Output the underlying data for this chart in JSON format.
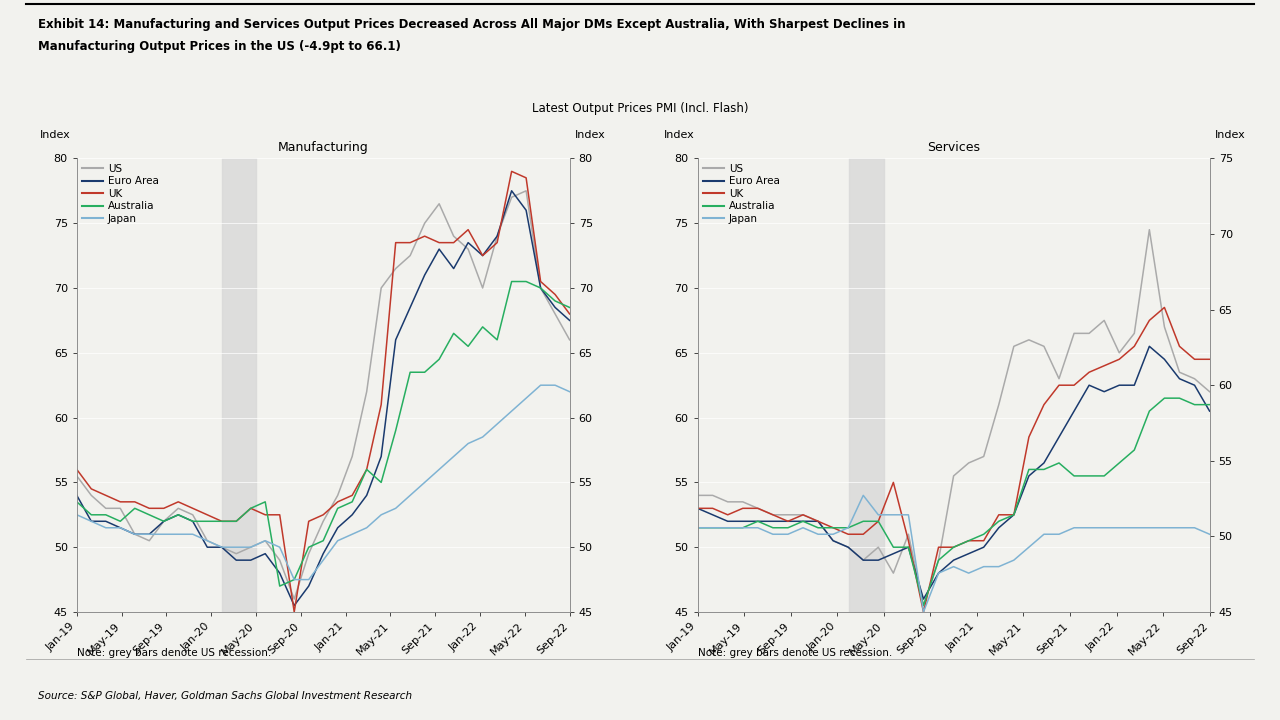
{
  "title_line1": "Exhibit 14: Manufacturing and Services Output Prices Decreased Across All Major DMs Except Australia, With Sharpest Declines in",
  "title_line2": "Manufacturing Output Prices in the US (-4.9pt to 66.1)",
  "super_title": "Latest Output Prices PMI (Incl. Flash)",
  "source": "Source: S&P Global, Haver, Goldman Sachs Global Investment Research",
  "note": "Note: grey bars denote US recession.",
  "bg_color": "#f5f5f0",
  "colors": {
    "US": "#aaaaaa",
    "Euro Area": "#1a3a6e",
    "UK": "#c0392b",
    "Australia": "#27ae60",
    "Japan": "#7fb3d3"
  },
  "x_labels": [
    "Jan-19",
    "May-19",
    "Sep-19",
    "Jan-20",
    "May-20",
    "Sep-20",
    "Jan-21",
    "May-21",
    "Sep-21",
    "Jan-22",
    "May-22",
    "Sep-22"
  ],
  "manufacturing": {
    "US": [
      55.5,
      54.0,
      53.0,
      53.0,
      51.0,
      50.5,
      52.0,
      53.0,
      52.5,
      50.5,
      50.0,
      49.5,
      50.0,
      50.5,
      49.0,
      46.0,
      49.5,
      52.0,
      54.0,
      57.0,
      62.0,
      70.0,
      71.5,
      72.5,
      75.0,
      76.5,
      74.0,
      73.0,
      70.0,
      74.0,
      77.0,
      77.5,
      70.0,
      68.0,
      66.0
    ],
    "Euro Area": [
      54.0,
      52.0,
      52.0,
      51.5,
      51.0,
      51.0,
      52.0,
      52.5,
      52.0,
      50.0,
      50.0,
      49.0,
      49.0,
      49.5,
      48.0,
      45.5,
      47.0,
      49.5,
      51.5,
      52.5,
      54.0,
      57.0,
      66.0,
      68.5,
      71.0,
      73.0,
      71.5,
      73.5,
      72.5,
      74.0,
      77.5,
      76.0,
      70.0,
      68.5,
      67.5
    ],
    "UK": [
      56.0,
      54.5,
      54.0,
      53.5,
      53.5,
      53.0,
      53.0,
      53.5,
      53.0,
      52.5,
      52.0,
      52.0,
      53.0,
      52.5,
      52.5,
      45.0,
      52.0,
      52.5,
      53.5,
      54.0,
      56.0,
      61.0,
      73.5,
      73.5,
      74.0,
      73.5,
      73.5,
      74.5,
      72.5,
      73.5,
      79.0,
      78.5,
      70.5,
      69.5,
      68.0
    ],
    "Australia": [
      53.5,
      52.5,
      52.5,
      52.0,
      53.0,
      52.5,
      52.0,
      52.5,
      52.0,
      52.0,
      52.0,
      52.0,
      53.0,
      53.5,
      47.0,
      47.5,
      50.0,
      50.5,
      53.0,
      53.5,
      56.0,
      55.0,
      59.0,
      63.5,
      63.5,
      64.5,
      66.5,
      65.5,
      67.0,
      66.0,
      70.5,
      70.5,
      70.0,
      69.0,
      68.5
    ],
    "Japan": [
      52.5,
      52.0,
      51.5,
      51.5,
      51.0,
      51.0,
      51.0,
      51.0,
      51.0,
      50.5,
      50.0,
      50.0,
      50.0,
      50.5,
      50.0,
      47.5,
      47.5,
      49.0,
      50.5,
      51.0,
      51.5,
      52.5,
      53.0,
      54.0,
      55.0,
      56.0,
      57.0,
      58.0,
      58.5,
      59.5,
      60.5,
      61.5,
      62.5,
      62.5,
      62.0
    ]
  },
  "services": {
    "US": [
      54.0,
      54.0,
      53.5,
      53.5,
      53.0,
      52.5,
      52.5,
      52.5,
      52.0,
      50.5,
      50.0,
      49.0,
      50.0,
      48.0,
      51.0,
      45.5,
      49.0,
      55.5,
      56.5,
      57.0,
      61.0,
      65.5,
      66.0,
      65.5,
      63.0,
      66.5,
      66.5,
      67.5,
      65.0,
      66.5,
      74.5,
      67.0,
      63.5,
      63.0,
      62.0
    ],
    "Euro Area": [
      53.0,
      52.5,
      52.0,
      52.0,
      52.0,
      52.0,
      52.0,
      52.0,
      52.0,
      50.5,
      50.0,
      49.0,
      49.0,
      49.5,
      50.0,
      46.0,
      48.0,
      49.0,
      49.5,
      50.0,
      51.5,
      52.5,
      55.5,
      56.5,
      58.5,
      60.5,
      62.5,
      62.0,
      62.5,
      62.5,
      65.5,
      64.5,
      63.0,
      62.5,
      60.5
    ],
    "UK": [
      53.0,
      53.0,
      52.5,
      53.0,
      53.0,
      52.5,
      52.0,
      52.5,
      52.0,
      51.5,
      51.0,
      51.0,
      52.0,
      55.0,
      50.5,
      45.0,
      50.0,
      50.0,
      50.5,
      50.5,
      52.5,
      52.5,
      58.5,
      61.0,
      62.5,
      62.5,
      63.5,
      64.0,
      64.5,
      65.5,
      67.5,
      68.5,
      65.5,
      64.5,
      64.5
    ],
    "Australia": [
      51.5,
      51.5,
      51.5,
      51.5,
      52.0,
      51.5,
      51.5,
      52.0,
      51.5,
      51.5,
      51.5,
      52.0,
      52.0,
      50.0,
      50.0,
      45.5,
      49.0,
      50.0,
      50.5,
      51.0,
      52.0,
      52.5,
      56.0,
      56.0,
      56.5,
      55.5,
      55.5,
      55.5,
      56.5,
      57.5,
      60.5,
      61.5,
      61.5,
      61.0,
      61.0
    ],
    "Japan": [
      51.5,
      51.5,
      51.5,
      51.5,
      51.5,
      51.0,
      51.0,
      51.5,
      51.0,
      51.0,
      51.5,
      54.0,
      52.5,
      52.5,
      52.5,
      45.0,
      48.0,
      48.5,
      48.0,
      48.5,
      48.5,
      49.0,
      50.0,
      51.0,
      51.0,
      51.5,
      51.5,
      51.5,
      51.5,
      51.5,
      51.5,
      51.5,
      51.5,
      51.5,
      51.0
    ]
  }
}
